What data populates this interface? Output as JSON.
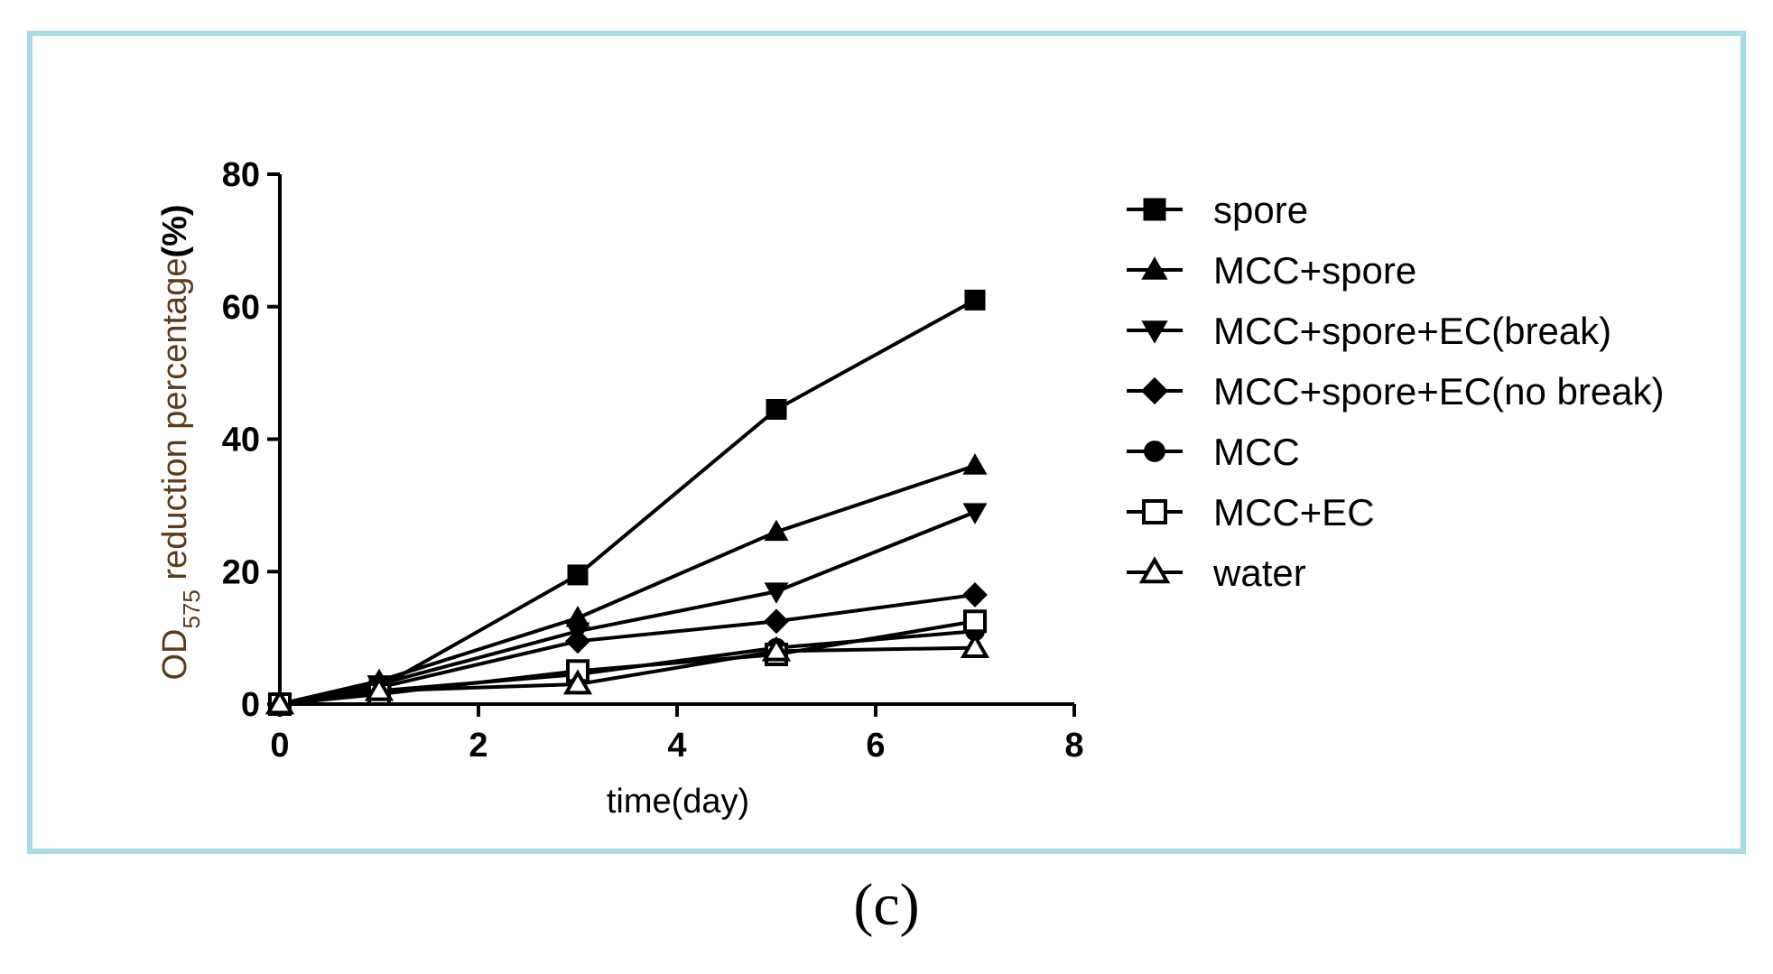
{
  "panel_label": "(c)",
  "colors": {
    "frame": "#a6dde0",
    "ink": "#000000",
    "ylabel": "#5b3b1a"
  },
  "chart_data": {
    "type": "line",
    "xlabel": "time(day)",
    "ylabel": {
      "prefix": "OD",
      "subscript": "575",
      "suffix": " reduction percentage",
      "unit": "(%)"
    },
    "xlim": [
      0,
      8
    ],
    "ylim": [
      0,
      80
    ],
    "xticks": [
      0,
      2,
      4,
      6,
      8
    ],
    "yticks": [
      0,
      20,
      40,
      60,
      80
    ],
    "x": [
      0,
      1,
      3,
      5,
      7
    ],
    "series": [
      {
        "name": "spore",
        "marker": "square-filled",
        "values": [
          0,
          2.5,
          19.5,
          44.5,
          61
        ]
      },
      {
        "name": "MCC+spore",
        "marker": "triangle-up-filled",
        "values": [
          0,
          3.5,
          13,
          26,
          36
        ]
      },
      {
        "name": "MCC+spore+EC(break)",
        "marker": "triangle-down-filled",
        "values": [
          0,
          3,
          11,
          17,
          29
        ]
      },
      {
        "name": "MCC+spore+EC(no break)",
        "marker": "diamond-filled",
        "values": [
          0,
          2.5,
          9.5,
          12.5,
          16.5
        ]
      },
      {
        "name": "MCC",
        "marker": "circle-filled",
        "values": [
          0,
          2,
          4.5,
          8.5,
          11
        ]
      },
      {
        "name": "MCC+EC",
        "marker": "square-open",
        "values": [
          0,
          1.5,
          5,
          7.5,
          12.5
        ]
      },
      {
        "name": "water",
        "marker": "triangle-up-open",
        "values": [
          0,
          2,
          3,
          8,
          8.5
        ]
      }
    ]
  }
}
